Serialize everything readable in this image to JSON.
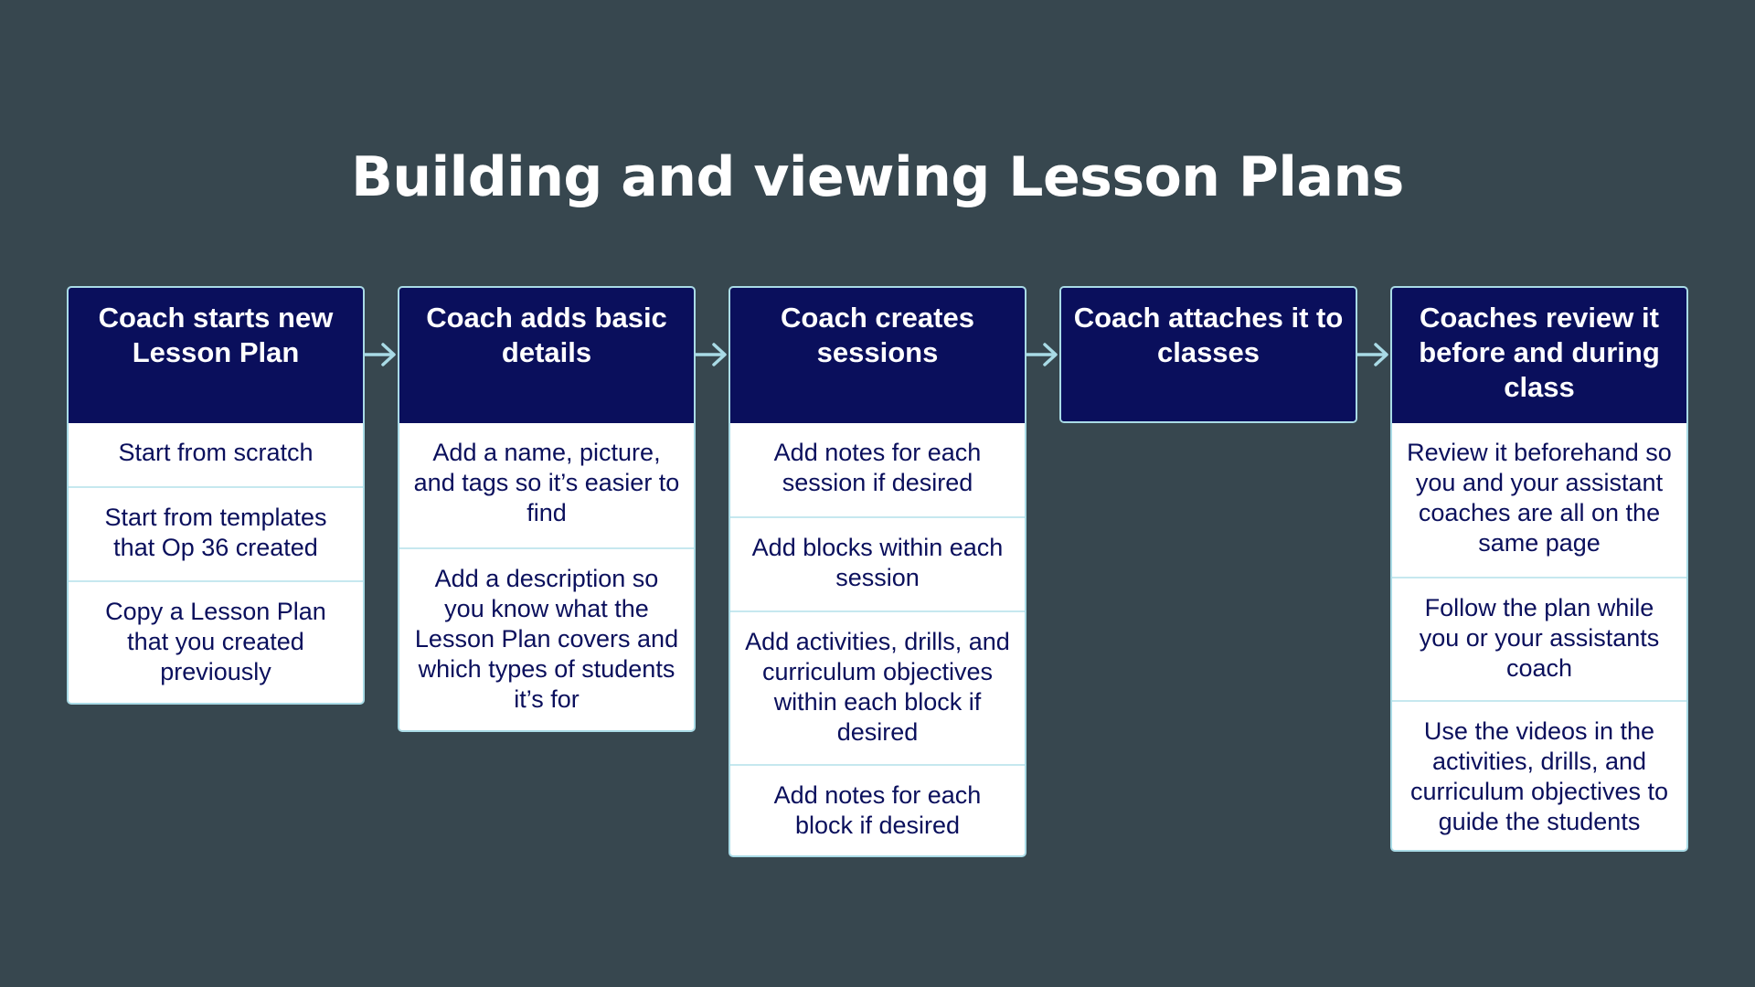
{
  "title": "Building and viewing Lesson Plans",
  "colors": {
    "background": "#37474f",
    "header_fill": "#0a0f5c",
    "item_text": "#0a0f5c",
    "border": "#a9dbe6",
    "arrow": "#a9dbe6"
  },
  "steps": [
    {
      "header": "Coach starts new Lesson Plan",
      "items": [
        "Start from scratch",
        "Start from templates that Op 36 created",
        "Copy a Lesson Plan that you created previously"
      ]
    },
    {
      "header": "Coach adds basic details",
      "items": [
        "Add a name, picture, and tags so it’s easier to find",
        "Add a description so you know what the Lesson Plan covers and which types of students it’s for"
      ]
    },
    {
      "header": "Coach creates sessions",
      "items": [
        "Add notes for each session if desired",
        "Add blocks within each session",
        "Add activities, drills, and curriculum objectives within each block if desired",
        "Add notes for each block if desired"
      ]
    },
    {
      "header": "Coach attaches it to classes",
      "items": []
    },
    {
      "header": "Coaches review it before and during class",
      "items": [
        "Review it beforehand so you and your assistant coaches are all on the same page",
        "Follow the plan while you or your assistants coach",
        "Use the videos in the activities, drills, and curriculum objectives to guide the students"
      ]
    }
  ]
}
